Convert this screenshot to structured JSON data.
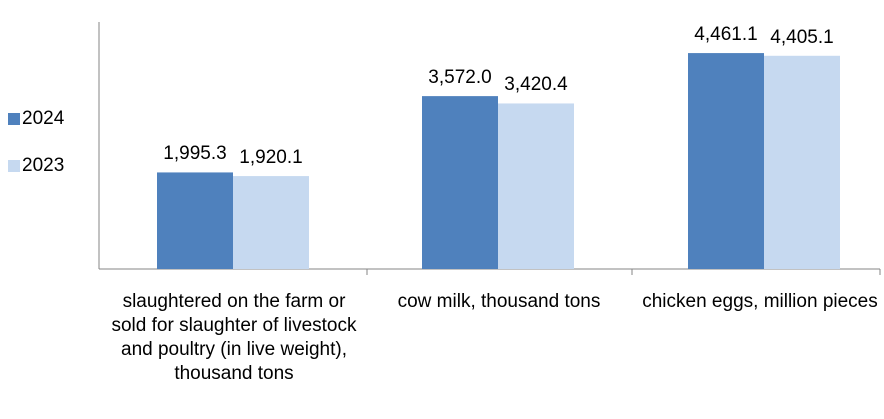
{
  "chart_data": {
    "type": "bar",
    "categories": [
      "slaughtered on the farm or sold for slaughter of livestock and poultry (in live weight), thousand tons",
      "cow milk, thousand tons",
      "chicken eggs, million pieces"
    ],
    "series": [
      {
        "name": "2024",
        "values": [
          1995.3,
          3572.0,
          4461.1
        ],
        "labels": [
          "1,995.3",
          "3,572.0",
          "4,461.1"
        ],
        "color": "#4f81bd"
      },
      {
        "name": "2023",
        "values": [
          1920.1,
          3420.4,
          4405.1
        ],
        "labels": [
          "1,920.1",
          "3,420.4",
          "4,405.1"
        ],
        "color": "#c6d9f0"
      }
    ],
    "ylim": [
      0,
      5000
    ],
    "grid": false,
    "legend_position": "left",
    "title": "",
    "xlabel": "",
    "ylabel": ""
  }
}
